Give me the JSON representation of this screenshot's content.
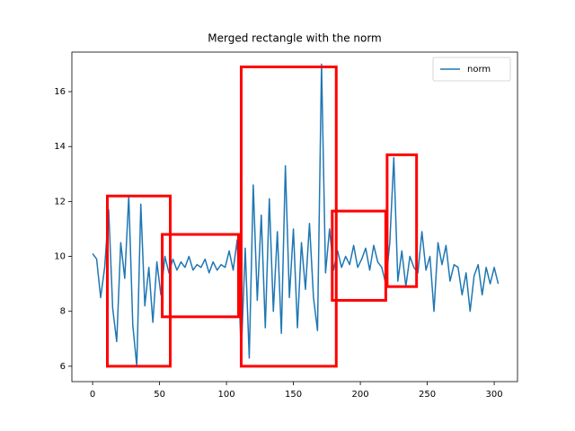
{
  "chart_data": {
    "type": "line",
    "title": "Merged rectangle with the norm",
    "x": [
      0,
      3,
      6,
      9,
      12,
      15,
      18,
      21,
      24,
      27,
      30,
      33,
      36,
      39,
      42,
      45,
      48,
      51,
      54,
      57,
      60,
      63,
      66,
      69,
      72,
      75,
      78,
      81,
      84,
      87,
      90,
      93,
      96,
      99,
      102,
      105,
      108,
      111,
      114,
      117,
      120,
      123,
      126,
      129,
      132,
      135,
      138,
      141,
      144,
      147,
      150,
      153,
      156,
      159,
      162,
      165,
      168,
      171,
      174,
      177,
      180,
      183,
      186,
      189,
      192,
      195,
      198,
      201,
      204,
      207,
      210,
      213,
      216,
      219,
      222,
      225,
      228,
      231,
      234,
      237,
      240,
      243,
      246,
      249,
      252,
      255,
      258,
      261,
      264,
      267,
      270,
      273,
      276,
      279,
      282,
      285,
      288,
      291,
      294,
      297,
      300,
      303
    ],
    "series": [
      {
        "name": "norm",
        "color": "#1f77b4",
        "values": [
          10.1,
          9.9,
          8.5,
          9.6,
          11.7,
          8.1,
          6.9,
          10.5,
          9.2,
          12.2,
          7.5,
          6.0,
          11.9,
          8.2,
          9.6,
          7.6,
          9.8,
          8.6,
          10.0,
          9.4,
          9.9,
          9.5,
          9.8,
          9.6,
          10.0,
          9.5,
          9.7,
          9.6,
          9.9,
          9.4,
          9.8,
          9.5,
          9.7,
          9.6,
          10.2,
          9.5,
          10.6,
          6.4,
          10.3,
          6.3,
          12.6,
          8.4,
          11.5,
          7.4,
          12.1,
          8.0,
          10.9,
          7.2,
          13.3,
          8.5,
          11.0,
          7.4,
          10.5,
          8.8,
          11.2,
          8.5,
          7.3,
          17.0,
          9.4,
          11.0,
          9.5,
          10.2,
          9.6,
          10.0,
          9.7,
          10.4,
          9.6,
          9.9,
          10.3,
          9.5,
          10.4,
          9.8,
          9.6,
          9.0,
          10.5,
          13.6,
          9.1,
          10.2,
          8.9,
          10.0,
          9.6,
          9.4,
          10.9,
          9.5,
          10.0,
          8.0,
          10.5,
          9.7,
          10.4,
          9.1,
          9.7,
          9.6,
          8.6,
          9.4,
          8.0,
          9.3,
          9.7,
          8.6,
          9.6,
          9.0,
          9.6,
          9.0
        ]
      }
    ],
    "rectangles": [
      {
        "x": [
          11,
          58
        ],
        "y": [
          6.0,
          12.2
        ]
      },
      {
        "x": [
          52,
          109
        ],
        "y": [
          7.8,
          10.8
        ]
      },
      {
        "x": [
          111,
          182
        ],
        "y": [
          6.0,
          16.9
        ]
      },
      {
        "x": [
          179,
          219
        ],
        "y": [
          8.4,
          11.65
        ]
      },
      {
        "x": [
          220,
          242
        ],
        "y": [
          8.9,
          13.7
        ]
      }
    ],
    "rectangle_color": "#ff0000",
    "xlim": [
      -15.5,
      317.4
    ],
    "ylim": [
      5.44,
      17.44
    ],
    "xticks": [
      0,
      50,
      100,
      150,
      200,
      250,
      300
    ],
    "yticks": [
      6,
      8,
      10,
      12,
      14,
      16
    ],
    "legend": "upper right"
  }
}
